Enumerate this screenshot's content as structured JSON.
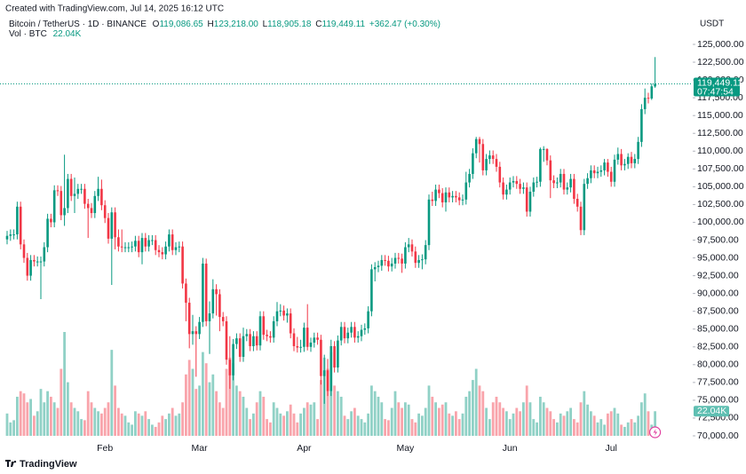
{
  "header": {
    "created": "Created with TradingView.com, Jul 14, 2025 16:12 UTC",
    "symbol": "Bitcoin / TetherUS · 1D · BINANCE",
    "ohlc": [
      {
        "key": "O",
        "value": "119,086.65"
      },
      {
        "key": "H",
        "value": "123,218.00"
      },
      {
        "key": "L",
        "value": "118,905.18"
      },
      {
        "key": "C",
        "value": "119,449.11"
      }
    ],
    "change": "+362.47 (+0.30%)",
    "volume_label": "Vol · BTC"
  },
  "brand": "TradingView",
  "chart_data": {
    "type": "candlestick",
    "currency": "USDT",
    "up_color": "#089981",
    "down_color": "#f23645",
    "grid": false,
    "last_price_label": "119,449.11",
    "countdown": "07:47:54",
    "volume_last_label": "22.04K",
    "ylim": [
      70000,
      125000
    ],
    "yticks": [
      {
        "value": 70000,
        "label": "70,000.00"
      },
      {
        "value": 72500,
        "label": "72,500.00"
      },
      {
        "value": 75000,
        "label": "75,000.00"
      },
      {
        "value": 77500,
        "label": "77,500.00"
      },
      {
        "value": 80000,
        "label": "80,000.00"
      },
      {
        "value": 82500,
        "label": "82,500.00"
      },
      {
        "value": 85000,
        "label": "85,000.00"
      },
      {
        "value": 87500,
        "label": "87,500.00"
      },
      {
        "value": 90000,
        "label": "90,000.00"
      },
      {
        "value": 92500,
        "label": "92,500.00"
      },
      {
        "value": 95000,
        "label": "95,000.00"
      },
      {
        "value": 97500,
        "label": "97,500.00"
      },
      {
        "value": 100000,
        "label": "100,000.00"
      },
      {
        "value": 102500,
        "label": "102,500.00"
      },
      {
        "value": 105000,
        "label": "105,000.00"
      },
      {
        "value": 107500,
        "label": "107,500.00"
      },
      {
        "value": 110000,
        "label": "110,000.00"
      },
      {
        "value": 112500,
        "label": "112,500.00"
      },
      {
        "value": 115000,
        "label": "115,000.00"
      },
      {
        "value": 117500,
        "label": "117,500.00"
      },
      {
        "value": 120000,
        "label": "120,000.00"
      },
      {
        "value": 122500,
        "label": "122,500.00"
      },
      {
        "value": 125000,
        "label": "125,000.00"
      }
    ],
    "categories": [
      null,
      null,
      null,
      null,
      null,
      null,
      null,
      null,
      null,
      null,
      null,
      null,
      null,
      null,
      null,
      null,
      null,
      null,
      null,
      null,
      null,
      null,
      null,
      null,
      null,
      null,
      null,
      null,
      null,
      "Feb",
      null,
      null,
      null,
      null,
      null,
      null,
      null,
      null,
      null,
      null,
      null,
      null,
      null,
      null,
      null,
      null,
      null,
      null,
      null,
      null,
      null,
      null,
      null,
      null,
      null,
      null,
      null,
      "Mar",
      null,
      null,
      null,
      null,
      null,
      null,
      null,
      null,
      null,
      null,
      null,
      null,
      null,
      null,
      null,
      null,
      null,
      null,
      null,
      null,
      null,
      null,
      null,
      null,
      null,
      null,
      null,
      null,
      null,
      null,
      "Apr",
      null,
      null,
      null,
      null,
      null,
      null,
      null,
      null,
      null,
      null,
      null,
      null,
      null,
      null,
      null,
      null,
      null,
      null,
      null,
      null,
      null,
      null,
      null,
      null,
      null,
      null,
      null,
      null,
      null,
      "May",
      null,
      null,
      null,
      null,
      null,
      null,
      null,
      null,
      null,
      null,
      null,
      null,
      null,
      null,
      null,
      null,
      null,
      null,
      null,
      null,
      null,
      null,
      null,
      null,
      null,
      null,
      null,
      null,
      null,
      null,
      "Jun",
      null,
      null,
      null,
      null,
      null,
      null,
      null,
      null,
      null,
      null,
      null,
      null,
      null,
      null,
      null,
      null,
      null,
      null,
      null,
      null,
      null,
      null,
      null,
      null,
      null,
      null,
      null,
      null,
      null,
      "Jul",
      null,
      null,
      null,
      null,
      null,
      null,
      null,
      null,
      null,
      null,
      null,
      null,
      null
    ],
    "open": [
      97600,
      98100,
      98300,
      98300,
      102200,
      96900,
      95000,
      92500,
      94700,
      94500,
      94500,
      94500,
      96500,
      100500,
      100000,
      104500,
      104400,
      101000,
      102000,
      106100,
      103700,
      104000,
      104700,
      104700,
      102600,
      102000,
      101300,
      103700,
      104700,
      102400,
      100600,
      97700,
      101400,
      97900,
      96600,
      96500,
      96500,
      96500,
      96600,
      97400,
      95800,
      97800,
      96600,
      97500,
      97500,
      96100,
      95800,
      95500,
      96600,
      98300,
      96100,
      96500,
      96600,
      91400,
      88700,
      84300,
      84700,
      84300,
      86000,
      94200,
      86100,
      87200,
      90600,
      89900,
      86700,
      86100,
      80700,
      78500,
      82900,
      83700,
      81100,
      84000,
      84300,
      82600,
      84000,
      82700,
      86800,
      84200,
      84000,
      83800,
      86100,
      87500,
      87600,
      86900,
      87200,
      84400,
      82600,
      82400,
      82500,
      85200,
      82500,
      83100,
      83800,
      83500,
      78400,
      79200,
      76300,
      82600,
      79600,
      83400,
      85300,
      83700,
      84500,
      85300,
      83800,
      84000,
      84900,
      85100,
      87500,
      93400,
      93700,
      93900,
      94700,
      94600,
      93800,
      94200,
      95000,
      94900,
      94200,
      96500,
      96900,
      95900,
      94300,
      94700,
      94800,
      96800,
      103200,
      103000,
      104600,
      104100,
      102800,
      104200,
      103500,
      103700,
      103500,
      103100,
      103200,
      105600,
      106800,
      109700,
      111700,
      111000,
      107300,
      108900,
      109400,
      108900,
      107800,
      105600,
      103900,
      104600,
      105600,
      105800,
      105400,
      104700,
      104900,
      101500,
      104300,
      105600,
      105700,
      110300,
      110300,
      108700,
      105900,
      105500,
      105600,
      106800,
      104600,
      104900,
      106100,
      103300,
      102200,
      98900,
      105400,
      106200,
      107300,
      106900,
      107100,
      107300,
      108400,
      107100,
      105700,
      108800,
      109600,
      108000,
      108200,
      109200,
      108300,
      108900,
      111300,
      115900,
      117500,
      117400,
      119086.65
    ],
    "high": [
      98800,
      99000,
      99000,
      102900,
      102900,
      97600,
      95700,
      95400,
      95400,
      95200,
      95200,
      97200,
      101200,
      101200,
      105200,
      105200,
      105100,
      109500,
      106800,
      106800,
      106300,
      105400,
      105400,
      105400,
      103300,
      102700,
      104400,
      106400,
      106000,
      103100,
      101300,
      102100,
      102100,
      99000,
      99000,
      97200,
      97200,
      97300,
      98100,
      98100,
      98500,
      98500,
      98200,
      98200,
      98200,
      96800,
      96500,
      97300,
      99000,
      99000,
      97200,
      97300,
      97300,
      92100,
      89400,
      87000,
      85400,
      86700,
      95000,
      94900,
      88900,
      92000,
      91300,
      90600,
      87400,
      86800,
      84000,
      83600,
      84400,
      84400,
      85200,
      85000,
      85000,
      84700,
      84700,
      87500,
      87500,
      84900,
      84700,
      86800,
      88800,
      88500,
      88300,
      87900,
      87900,
      85100,
      83900,
      83500,
      85900,
      88500,
      83800,
      84500,
      84500,
      84200,
      81400,
      80800,
      83500,
      83300,
      84100,
      86000,
      86000,
      85200,
      86000,
      86000,
      84700,
      85600,
      85800,
      88200,
      94100,
      94400,
      94600,
      95400,
      95400,
      95300,
      95000,
      95700,
      95700,
      95600,
      97200,
      97800,
      97600,
      96600,
      95400,
      95500,
      97500,
      103900,
      104300,
      105300,
      105300,
      104800,
      104900,
      104900,
      104400,
      104400,
      104200,
      103900,
      107100,
      107500,
      110400,
      112000,
      112000,
      111700,
      109600,
      110100,
      110100,
      109600,
      108500,
      106300,
      105300,
      106300,
      106500,
      106500,
      106100,
      105600,
      105600,
      105000,
      106300,
      106400,
      110500,
      110700,
      110400,
      109400,
      106600,
      106300,
      107500,
      107500,
      105600,
      106800,
      106800,
      104000,
      102900,
      106100,
      106900,
      108000,
      108000,
      107800,
      108000,
      108900,
      108900,
      107800,
      109500,
      110500,
      110300,
      108900,
      109700,
      109900,
      109600,
      112000,
      116600,
      118800,
      118200,
      119500,
      123218
    ],
    "low": [
      96900,
      97400,
      97600,
      97600,
      96200,
      94300,
      91800,
      91800,
      93800,
      93800,
      89200,
      93800,
      95800,
      99300,
      99300,
      103700,
      100300,
      99500,
      101300,
      103000,
      101300,
      103300,
      104000,
      101900,
      97800,
      100600,
      100600,
      103000,
      101700,
      99900,
      97000,
      91200,
      96200,
      95900,
      95800,
      95800,
      95800,
      95800,
      95900,
      95100,
      94100,
      95900,
      95900,
      96800,
      95400,
      95100,
      94800,
      94800,
      95900,
      95400,
      95400,
      95800,
      90700,
      86100,
      82300,
      82800,
      78300,
      83600,
      85300,
      85400,
      81500,
      86500,
      86900,
      84700,
      85400,
      80000,
      76600,
      77800,
      82200,
      80400,
      80400,
      83300,
      81900,
      81900,
      82000,
      82000,
      83500,
      83300,
      83100,
      83100,
      85400,
      86800,
      86200,
      85900,
      83700,
      81900,
      81700,
      81700,
      81800,
      82000,
      81800,
      82400,
      82800,
      77200,
      74500,
      75600,
      75600,
      78900,
      78900,
      82700,
      83000,
      83000,
      83800,
      83100,
      83100,
      83300,
      84200,
      84400,
      86800,
      91700,
      93000,
      93200,
      93900,
      93100,
      93100,
      93500,
      94200,
      92900,
      93500,
      95800,
      95200,
      93600,
      93600,
      93400,
      94100,
      96100,
      102300,
      102300,
      103400,
      102100,
      101500,
      102800,
      102800,
      102800,
      102400,
      102400,
      102500,
      104900,
      106100,
      109000,
      108400,
      106600,
      106600,
      108200,
      108200,
      107100,
      104900,
      103200,
      103200,
      103900,
      104900,
      104700,
      104000,
      104000,
      100800,
      100800,
      103600,
      104900,
      105000,
      108500,
      108000,
      103400,
      104800,
      104800,
      104900,
      103900,
      103900,
      104200,
      102600,
      101500,
      98200,
      98200,
      104700,
      105500,
      106200,
      106200,
      106400,
      106600,
      106400,
      105000,
      105000,
      108100,
      107300,
      107300,
      107500,
      107600,
      107600,
      108200,
      110600,
      115200,
      116700,
      117200,
      118905.18
    ],
    "close": [
      98100,
      98300,
      98300,
      102200,
      96900,
      95000,
      92500,
      94700,
      94500,
      94500,
      94500,
      96500,
      100500,
      100000,
      104500,
      104400,
      101000,
      102000,
      106100,
      103700,
      104000,
      104700,
      104700,
      102600,
      102000,
      101300,
      103700,
      104700,
      102400,
      100600,
      97700,
      101400,
      97900,
      96600,
      96500,
      96500,
      96500,
      96600,
      97400,
      95800,
      97800,
      96600,
      97500,
      97500,
      96100,
      95800,
      95500,
      96600,
      98300,
      96100,
      96500,
      96600,
      91400,
      88700,
      84300,
      84700,
      84300,
      86000,
      94200,
      86100,
      87200,
      90600,
      89900,
      86700,
      86100,
      80700,
      78500,
      82900,
      83700,
      81100,
      84000,
      84300,
      82600,
      84000,
      82700,
      86800,
      84200,
      84000,
      83800,
      86100,
      87500,
      87600,
      86900,
      87200,
      84400,
      82600,
      82400,
      82500,
      85200,
      82500,
      83100,
      83800,
      83500,
      78400,
      79200,
      76300,
      82600,
      79600,
      83400,
      85300,
      83700,
      84500,
      85300,
      83800,
      84000,
      84900,
      85100,
      87500,
      93400,
      93700,
      93900,
      94700,
      94600,
      93800,
      94200,
      95000,
      94900,
      94200,
      96500,
      96900,
      95900,
      94300,
      94700,
      94800,
      96800,
      103200,
      103000,
      104600,
      104100,
      102800,
      104200,
      103500,
      103700,
      103500,
      103100,
      103200,
      105600,
      106800,
      109700,
      111700,
      111000,
      107300,
      108900,
      109400,
      108900,
      107800,
      105600,
      103900,
      104600,
      105600,
      105800,
      105400,
      104700,
      104900,
      101500,
      104300,
      105600,
      105700,
      110300,
      110300,
      108700,
      105900,
      105500,
      105600,
      106800,
      104600,
      104900,
      106100,
      103300,
      102200,
      98900,
      105400,
      106200,
      107300,
      106900,
      107100,
      107300,
      108400,
      107100,
      105700,
      108800,
      109600,
      108000,
      108200,
      109200,
      108300,
      108900,
      111300,
      115900,
      117500,
      117400,
      119100,
      119449.11
    ],
    "volume": [
      20000,
      12000,
      14000,
      35000,
      40000,
      38000,
      30000,
      33000,
      18000,
      22000,
      42000,
      30000,
      40000,
      35000,
      30000,
      25000,
      60000,
      93000,
      48000,
      30000,
      25000,
      22000,
      15000,
      14000,
      40000,
      30000,
      25000,
      22000,
      20000,
      25000,
      30000,
      77000,
      45000,
      25000,
      20000,
      18000,
      12000,
      10000,
      22000,
      20000,
      18000,
      22000,
      15000,
      10000,
      8000,
      12000,
      18000,
      15000,
      20000,
      25000,
      18000,
      20000,
      30000,
      55000,
      68000,
      60000,
      42000,
      45000,
      75000,
      65000,
      48000,
      55000,
      40000,
      30000,
      25000,
      60000,
      70000,
      65000,
      45000,
      40000,
      35000,
      25000,
      15000,
      20000,
      30000,
      40000,
      35000,
      15000,
      12000,
      30000,
      25000,
      20000,
      18000,
      22000,
      28000,
      20000,
      12000,
      20000,
      25000,
      30000,
      28000,
      30000,
      15000,
      50000,
      70000,
      60000,
      75000,
      45000,
      40000,
      35000,
      18000,
      15000,
      22000,
      25000,
      18000,
      15000,
      12000,
      20000,
      45000,
      40000,
      35000,
      30000,
      15000,
      14000,
      25000,
      40000,
      30000,
      25000,
      30000,
      28000,
      15000,
      12000,
      20000,
      18000,
      25000,
      45000,
      35000,
      30000,
      25000,
      28000,
      30000,
      20000,
      18000,
      22000,
      15000,
      20000,
      35000,
      40000,
      50000,
      60000,
      45000,
      40000,
      25000,
      15000,
      30000,
      35000,
      30000,
      25000,
      22000,
      15000,
      20000,
      25000,
      22000,
      30000,
      45000,
      30000,
      15000,
      12000,
      35000,
      30000,
      25000,
      22000,
      15000,
      12000,
      20000,
      18000,
      22000,
      25000,
      15000,
      12000,
      30000,
      40000,
      28000,
      22000,
      18000,
      12000,
      15000,
      10000,
      20000,
      22000,
      25000,
      20000,
      10000,
      8000,
      12000,
      15000,
      12000,
      18000,
      30000,
      38000,
      22000,
      10000,
      22040
    ]
  }
}
